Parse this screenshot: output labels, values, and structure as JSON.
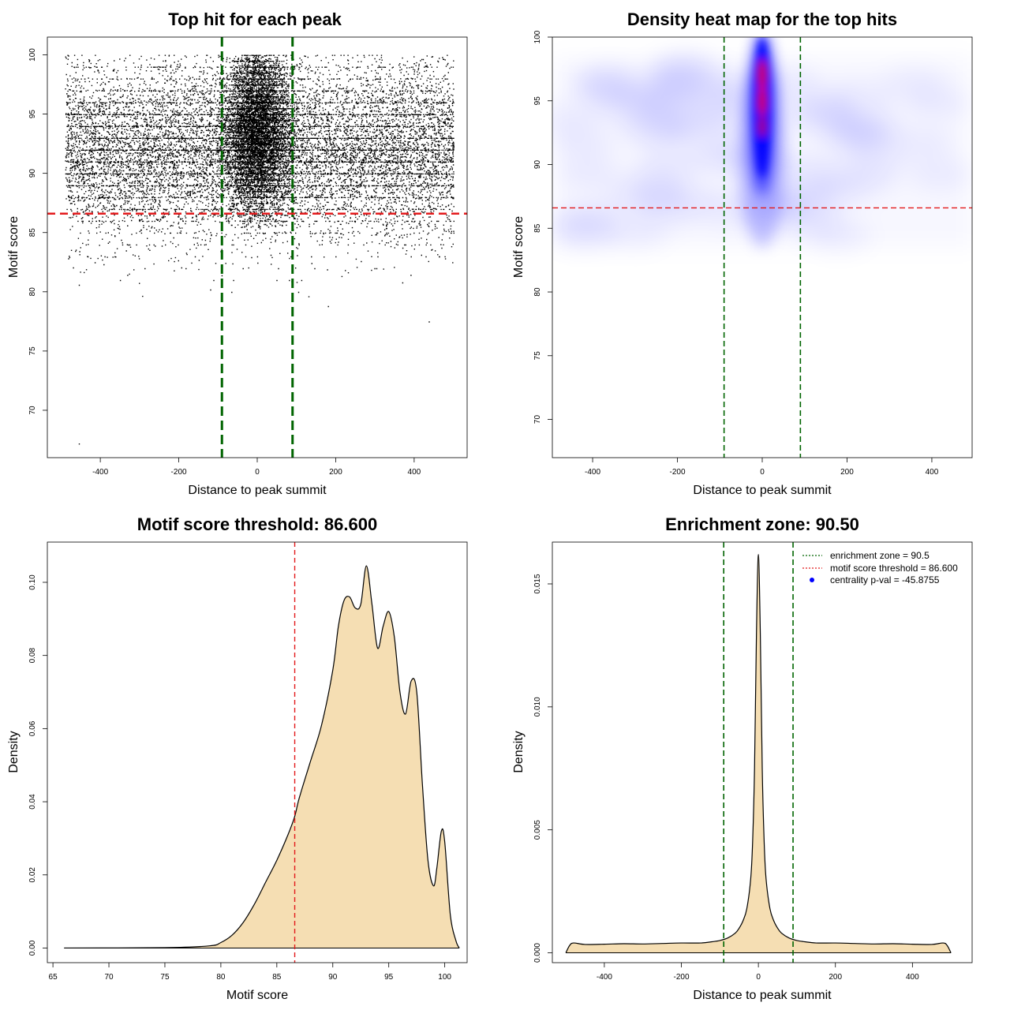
{
  "colors": {
    "scatter_point": "#000000",
    "zone_line": "#006400",
    "threshold_line": "#e31a1c",
    "density_fill": "#f5deb3",
    "heat_low": "#ffffff",
    "heat_mid": "#0000ff",
    "heat_high": "#ff0000",
    "legend_point": "#0000ff"
  },
  "chart_data": [
    {
      "id": "scatter",
      "type": "scatter",
      "title": "Top hit for each peak",
      "xlabel": "Distance to peak summit",
      "ylabel": "Motif score",
      "xlim": [
        -535,
        535
      ],
      "ylim": [
        66,
        101.5
      ],
      "xticks": [
        -400,
        -200,
        0,
        200,
        400
      ],
      "yticks": [
        70,
        75,
        80,
        85,
        90,
        95,
        100
      ],
      "vlines": [
        -90,
        90
      ],
      "hline": 86.6,
      "points_summary": {
        "n_background": 12000,
        "n_central": 9000,
        "x_range": [
          -490,
          500
        ],
        "central_sd": 40,
        "score_range_background": [
          79.5,
          100
        ],
        "score_range_central": [
          85.5,
          100
        ],
        "outliers": [
          [
            -455,
            67.2
          ],
          [
            437,
            77.5
          ],
          [
            180,
            78.8
          ],
          [
            -455,
            80.6
          ],
          [
            -120,
            80.2
          ]
        ]
      }
    },
    {
      "id": "heatmap",
      "type": "heatmap",
      "title": "Density heat map for the top hits",
      "xlabel": "Distance to peak summit",
      "ylabel": "Motif score",
      "xlim": [
        -495,
        495
      ],
      "ylim": [
        67,
        100
      ],
      "xticks": [
        -400,
        -200,
        0,
        200,
        400
      ],
      "yticks": [
        70,
        75,
        80,
        85,
        90,
        95,
        100
      ],
      "vlines": [
        -90,
        90
      ],
      "hline": 86.6,
      "hotspot": {
        "x": 0,
        "y_range": [
          88,
          100
        ],
        "peak_y": 95
      }
    },
    {
      "id": "score_density",
      "type": "area",
      "title": "Motif score threshold: 86.600",
      "xlabel": "Motif score",
      "ylabel": "Density",
      "xlim": [
        64.5,
        102
      ],
      "ylim": [
        -0.004,
        0.111
      ],
      "xticks": [
        65,
        70,
        75,
        80,
        85,
        90,
        95,
        100
      ],
      "yticks": [
        0.0,
        0.02,
        0.04,
        0.06,
        0.08,
        0.1
      ],
      "ytick_labels": [
        "0.00",
        "0.02",
        "0.04",
        "0.06",
        "0.08",
        "0.10"
      ],
      "vline": 86.6,
      "x": [
        66,
        75,
        79,
        80,
        81,
        82,
        83,
        84,
        85,
        86,
        86.6,
        87,
        88,
        89,
        90,
        90.5,
        91,
        91.5,
        92,
        92.5,
        93,
        93.5,
        94,
        94.5,
        95,
        95.5,
        96,
        96.5,
        97,
        97.5,
        98,
        98.5,
        99,
        99.3,
        99.7,
        100,
        100.5,
        101,
        101.3
      ],
      "y": [
        0.0,
        0.0001,
        0.0006,
        0.0015,
        0.0035,
        0.007,
        0.012,
        0.018,
        0.024,
        0.031,
        0.036,
        0.041,
        0.051,
        0.061,
        0.076,
        0.088,
        0.095,
        0.096,
        0.093,
        0.094,
        0.1045,
        0.094,
        0.082,
        0.088,
        0.092,
        0.085,
        0.07,
        0.064,
        0.073,
        0.07,
        0.045,
        0.024,
        0.017,
        0.022,
        0.032,
        0.029,
        0.009,
        0.002,
        0.0
      ]
    },
    {
      "id": "distance_density",
      "type": "area",
      "title": "Enrichment zone: 90.50",
      "xlabel": "Distance to peak summit",
      "ylabel": "Density",
      "xlim": [
        -535,
        555
      ],
      "ylim": [
        -0.0004,
        0.0167
      ],
      "xticks": [
        -400,
        -200,
        0,
        200,
        400
      ],
      "yticks": [
        0.0,
        0.005,
        0.01,
        0.015
      ],
      "ytick_labels": [
        "0.000",
        "0.005",
        "0.010",
        "0.015"
      ],
      "vlines": [
        -90,
        90
      ],
      "x": [
        -500,
        -490,
        -480,
        -450,
        -400,
        -350,
        -300,
        -250,
        -200,
        -150,
        -120,
        -100,
        -80,
        -60,
        -50,
        -40,
        -30,
        -20,
        -15,
        -10,
        -5,
        0,
        5,
        10,
        15,
        20,
        30,
        40,
        50,
        60,
        80,
        100,
        120,
        150,
        200,
        250,
        300,
        350,
        400,
        450,
        480,
        490,
        500
      ],
      "y": [
        0.0,
        0.0003,
        0.0004,
        0.00034,
        0.00035,
        0.00037,
        0.00036,
        0.00038,
        0.0004,
        0.0004,
        0.00045,
        0.0005,
        0.0006,
        0.0008,
        0.001,
        0.0013,
        0.0018,
        0.003,
        0.0045,
        0.0075,
        0.013,
        0.0162,
        0.013,
        0.0075,
        0.0045,
        0.003,
        0.0018,
        0.0013,
        0.001,
        0.0008,
        0.0006,
        0.0005,
        0.00045,
        0.0004,
        0.0004,
        0.00038,
        0.00036,
        0.00037,
        0.00035,
        0.00034,
        0.0004,
        0.0003,
        0.0
      ],
      "legend": [
        {
          "label": "enrichment zone = 90.5",
          "style": "dotted-line",
          "color": "#006400"
        },
        {
          "label": "motif score threshold = 86.600",
          "style": "dotted-line",
          "color": "#e31a1c"
        },
        {
          "label": "centrality p-val = -45.8755",
          "style": "point",
          "color": "#0000ff"
        }
      ],
      "legend_position": "top-right"
    }
  ]
}
